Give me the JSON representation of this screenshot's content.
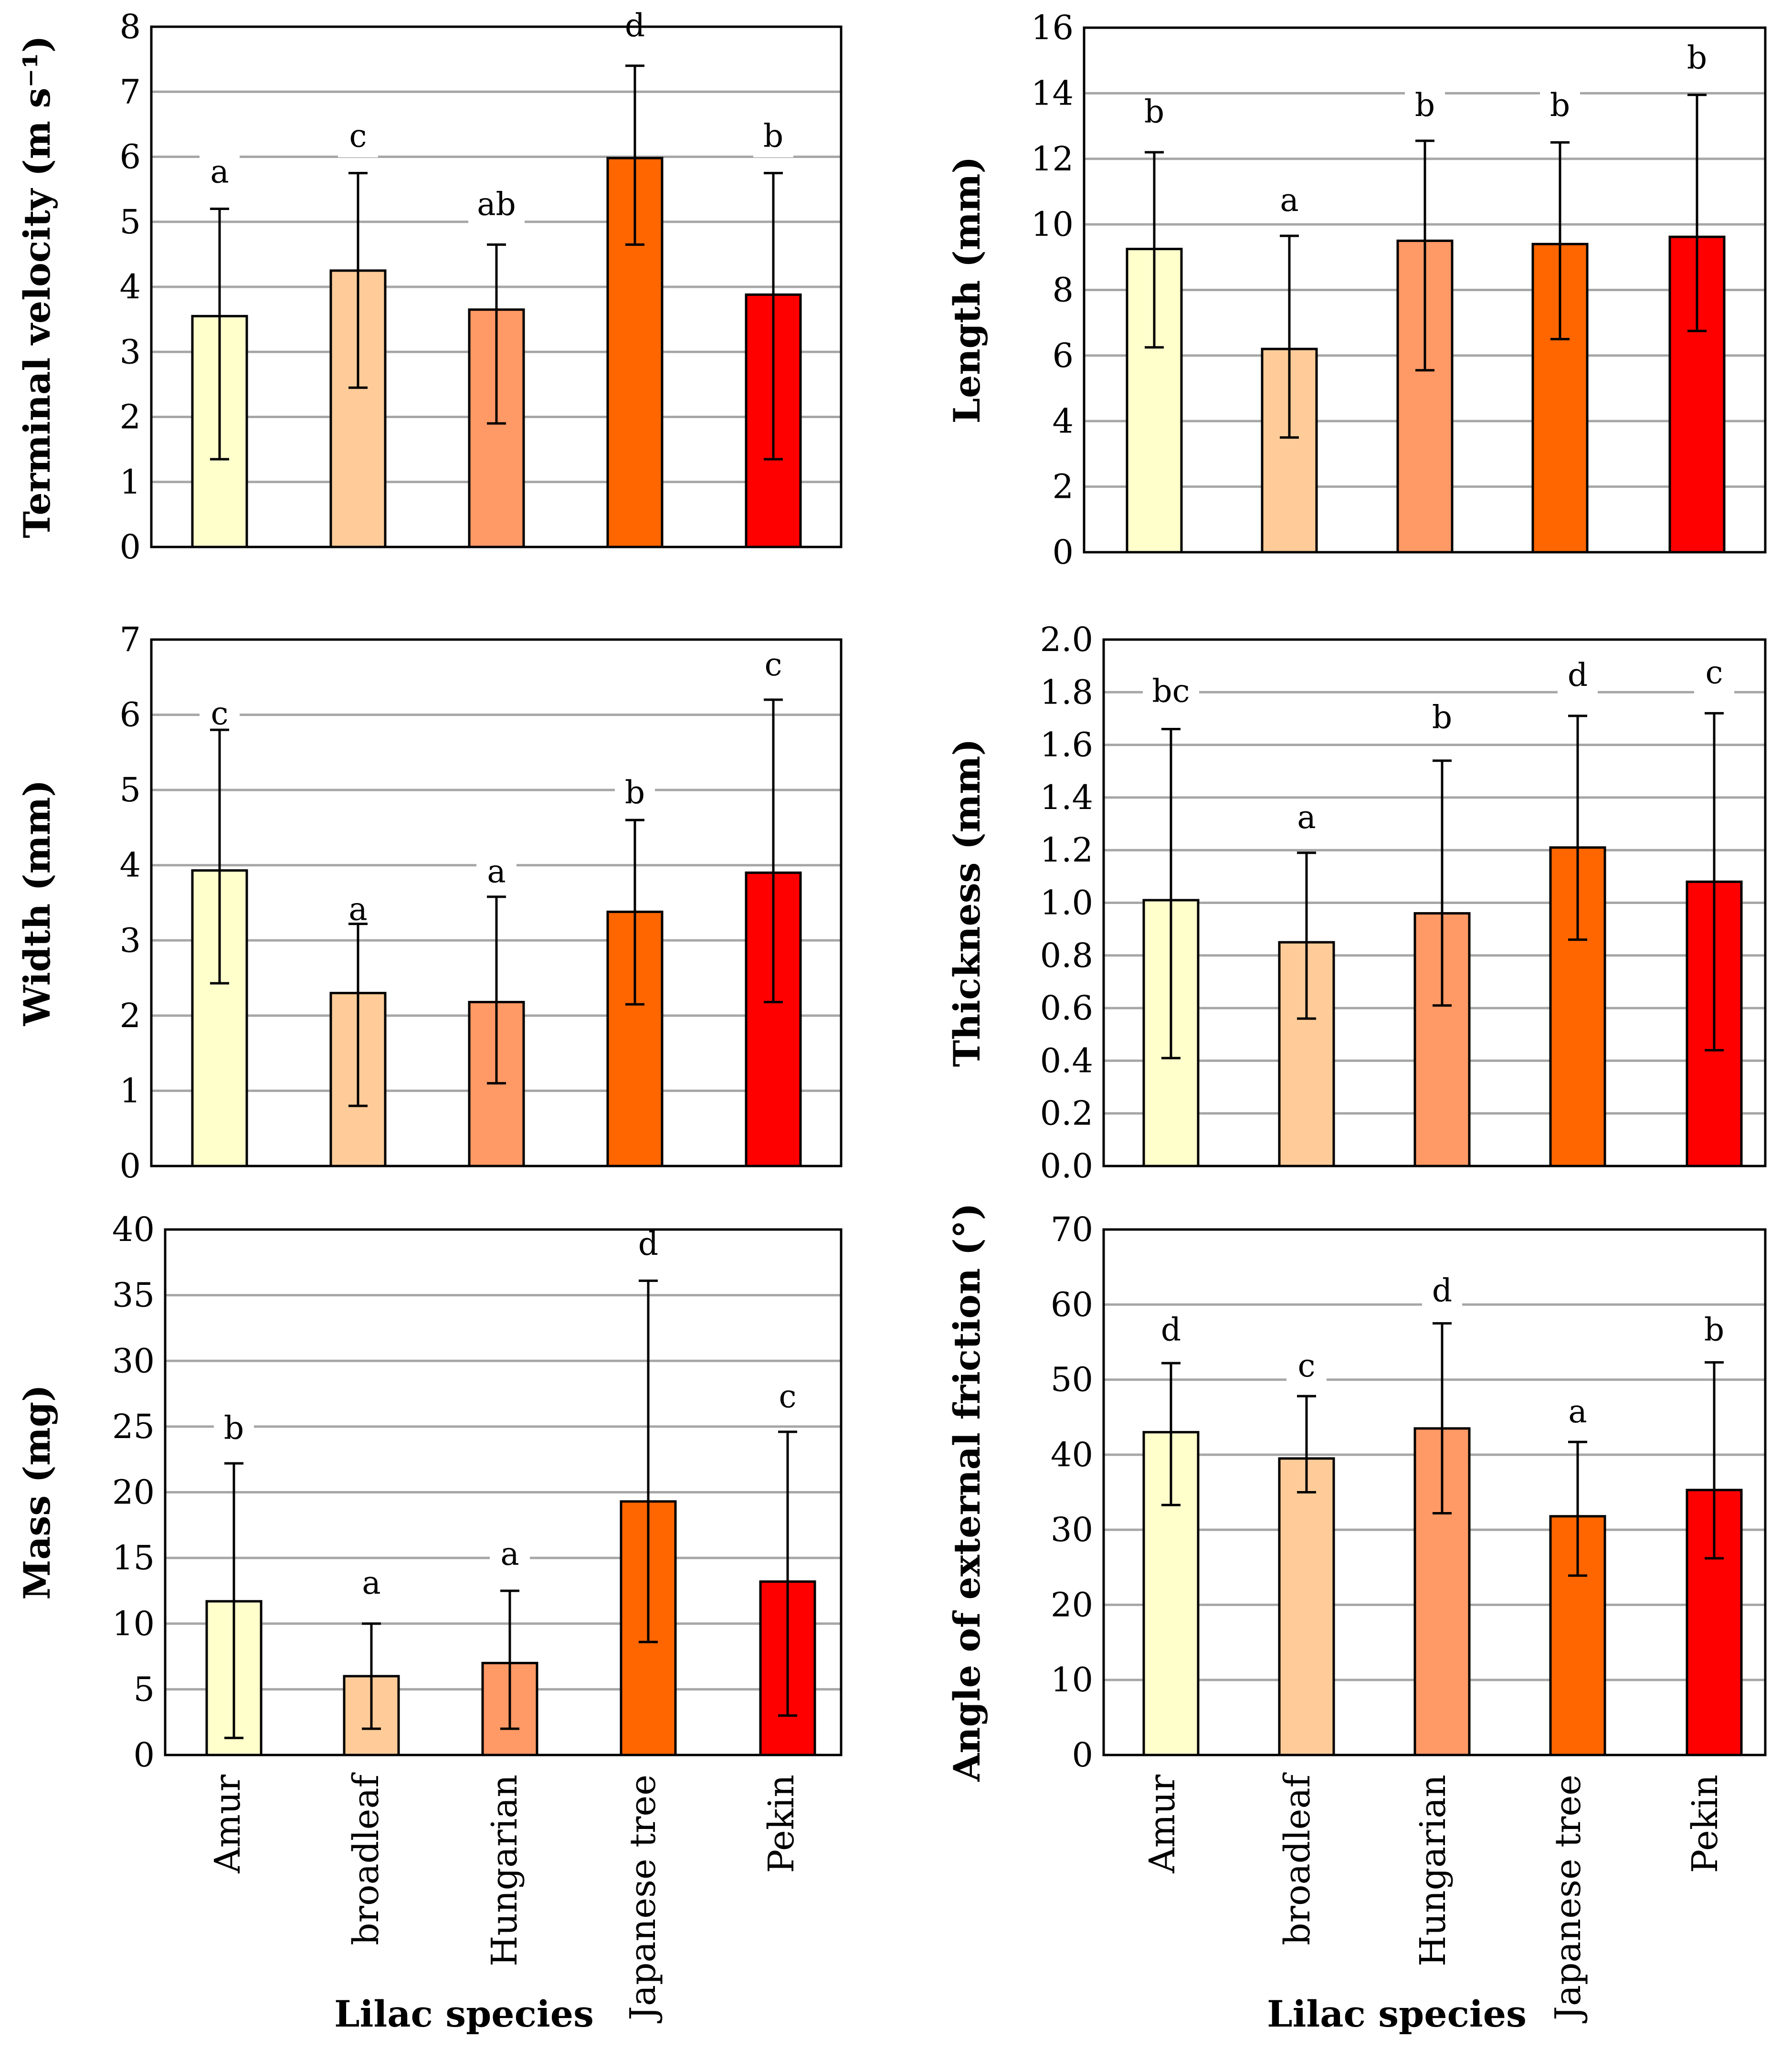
{
  "colors": {
    "bar_fills": [
      "#ffffcc",
      "#ffcc99",
      "#ff9966",
      "#ff6600",
      "#ff0000"
    ],
    "grid": "#a6a6a6",
    "axis": "#000000"
  },
  "figure": {
    "xlabel": "Lilac species",
    "categories": [
      "Amur",
      "broadleaf",
      "Hungarian",
      "Japanese tree",
      "Pekin"
    ]
  },
  "chart_data": [
    {
      "type": "bar",
      "title": "",
      "ylabel": "Terminal velocity (m s⁻¹)",
      "ylim": [
        0,
        8
      ],
      "yticks": [
        0,
        1,
        2,
        3,
        4,
        5,
        6,
        7,
        8
      ],
      "decimals": 0,
      "categories": [
        "Amur",
        "broadleaf",
        "Hungarian",
        "Japanese tree",
        "Pekin"
      ],
      "values": [
        3.55,
        4.25,
        3.65,
        5.98,
        3.88
      ],
      "error_high": [
        5.2,
        5.75,
        4.65,
        7.4,
        5.75
      ],
      "error_low": [
        1.35,
        2.45,
        1.9,
        4.65,
        1.35
      ],
      "letters": [
        "a",
        "c",
        "ab",
        "d",
        "b"
      ],
      "letter_pos": [
        5.75,
        6.3,
        5.25,
        8.0,
        6.3
      ],
      "grid": true
    },
    {
      "type": "bar",
      "title": "",
      "ylabel": "Length (mm)",
      "ylim": [
        0,
        16
      ],
      "yticks": [
        0,
        2,
        4,
        6,
        8,
        10,
        12,
        14,
        16
      ],
      "decimals": 0,
      "categories": [
        "Amur",
        "broadleaf",
        "Hungarian",
        "Japanese tree",
        "Pekin"
      ],
      "values": [
        9.25,
        6.2,
        9.5,
        9.4,
        9.62
      ],
      "error_high": [
        12.2,
        9.65,
        12.55,
        12.5,
        13.95
      ],
      "error_low": [
        6.25,
        3.5,
        5.55,
        6.5,
        6.75
      ],
      "letters": [
        "b",
        "a",
        "b",
        "b",
        "b"
      ],
      "letter_pos": [
        13.4,
        10.7,
        13.6,
        13.6,
        15.05
      ],
      "grid": true
    },
    {
      "type": "bar",
      "title": "",
      "ylabel": "Width (mm)",
      "ylim": [
        0,
        7
      ],
      "yticks": [
        0,
        1,
        2,
        3,
        4,
        5,
        6,
        7
      ],
      "decimals": 0,
      "categories": [
        "Amur",
        "broadleaf",
        "Hungarian",
        "Japanese tree",
        "Pekin"
      ],
      "values": [
        3.93,
        2.3,
        2.18,
        3.38,
        3.9
      ],
      "error_high": [
        5.8,
        3.22,
        3.58,
        4.6,
        6.2
      ],
      "error_low": [
        2.43,
        0.8,
        1.1,
        2.15,
        2.18
      ],
      "letters": [
        "c",
        "a",
        "a",
        "b",
        "c"
      ],
      "letter_pos": [
        6.0,
        3.4,
        3.9,
        4.95,
        6.65
      ],
      "grid": true
    },
    {
      "type": "bar",
      "title": "",
      "ylabel": "Thickness (mm)",
      "ylim": [
        0,
        2.0
      ],
      "yticks": [
        0,
        0.2,
        0.4,
        0.6,
        0.8,
        1.0,
        1.2,
        1.4,
        1.6,
        1.8,
        2.0
      ],
      "decimals": 1,
      "categories": [
        "Amur",
        "broadleaf",
        "Hungarian",
        "Japanese tree",
        "Pekin"
      ],
      "values": [
        1.01,
        0.85,
        0.96,
        1.21,
        1.08
      ],
      "error_high": [
        1.66,
        1.19,
        1.54,
        1.71,
        1.72
      ],
      "error_low": [
        0.41,
        0.56,
        0.61,
        0.86,
        0.44
      ],
      "letters": [
        "bc",
        "a",
        "b",
        "d",
        "c"
      ],
      "letter_pos": [
        1.8,
        1.32,
        1.7,
        1.86,
        1.87
      ],
      "grid": true
    },
    {
      "type": "bar",
      "title": "",
      "ylabel": "Mass (mg)",
      "ylim": [
        0,
        40
      ],
      "yticks": [
        0,
        5,
        10,
        15,
        20,
        25,
        30,
        35,
        40
      ],
      "decimals": 0,
      "categories": [
        "Amur",
        "broadleaf",
        "Hungarian",
        "Japanese tree",
        "Pekin"
      ],
      "values": [
        11.7,
        6.0,
        7.0,
        19.3,
        13.2
      ],
      "error_high": [
        22.2,
        10.0,
        12.5,
        36.1,
        24.6
      ],
      "error_low": [
        1.3,
        2.0,
        2.0,
        8.6,
        3.0
      ],
      "letters": [
        "b",
        "a",
        "a",
        "d",
        "c"
      ],
      "letter_pos": [
        24.8,
        13.0,
        15.2,
        38.8,
        27.2
      ],
      "grid": true
    },
    {
      "type": "bar",
      "title": "",
      "ylabel": "Angle of external friction (°)",
      "ylim": [
        0,
        70
      ],
      "yticks": [
        0,
        10,
        20,
        30,
        40,
        50,
        60,
        70
      ],
      "decimals": 0,
      "categories": [
        "Amur",
        "broadleaf",
        "Hungarian",
        "Japanese tree",
        "Pekin"
      ],
      "values": [
        43.0,
        39.5,
        43.5,
        31.8,
        35.3
      ],
      "error_high": [
        52.2,
        47.8,
        57.5,
        41.7,
        52.3
      ],
      "error_low": [
        33.3,
        35.0,
        32.2,
        23.9,
        26.2
      ],
      "letters": [
        "d",
        "c",
        "d",
        "a",
        "b"
      ],
      "letter_pos": [
        56.5,
        51.7,
        61.7,
        45.6,
        56.5
      ],
      "grid": true
    }
  ]
}
